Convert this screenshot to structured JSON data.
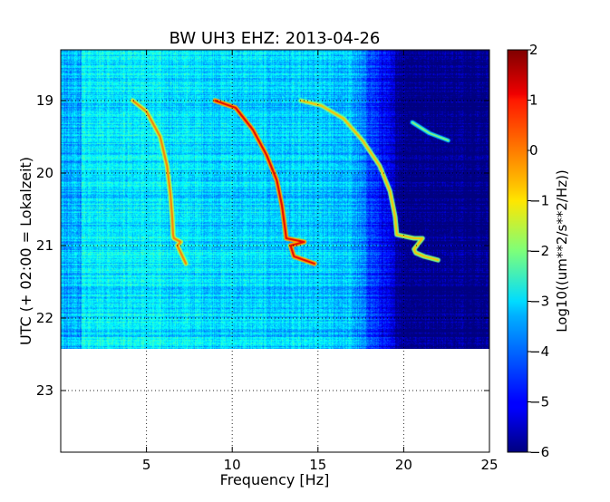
{
  "chart_data": {
    "type": "heatmap",
    "title": "BW UH3 EHZ: 2013-04-26",
    "xlabel": "Frequency [Hz]",
    "ylabel": "UTC (+ 02:00 = Lokalzeit)",
    "xlim": [
      0,
      25
    ],
    "ylim_hours": [
      18.3,
      23.85
    ],
    "data_extent_hours": [
      18.3,
      22.35
    ],
    "x_ticks": [
      5,
      10,
      15,
      20,
      25
    ],
    "x_tick_labels": [
      "5",
      "10",
      "15",
      "20",
      "25"
    ],
    "y_ticks": [
      19,
      20,
      21,
      22,
      23
    ],
    "y_tick_labels": [
      "19",
      "20",
      "21",
      "22",
      "23"
    ],
    "grid": true,
    "colormap": "jet",
    "colorbar": {
      "label": "Log10((um**2/s**2/Hz))",
      "range": [
        -6,
        2
      ],
      "ticks": [
        2,
        1,
        0,
        -1,
        -2,
        -3,
        -4,
        -5,
        -6
      ],
      "tick_labels": [
        "2",
        "1",
        "0",
        "−1",
        "−2",
        "−3",
        "−4",
        "−5",
        "−6"
      ]
    },
    "background": {
      "description": "broadband noise",
      "low_freq_level": -3.0,
      "high_freq_level": -6.0,
      "rolloff_hz": 19.5
    },
    "harmonic_tracks": [
      {
        "points": [
          [
            4.2,
            19.0
          ],
          [
            5.0,
            19.15
          ],
          [
            5.8,
            19.5
          ],
          [
            6.2,
            19.9
          ],
          [
            6.4,
            20.3
          ],
          [
            6.5,
            20.6
          ],
          [
            6.55,
            20.85
          ],
          [
            6.6,
            20.9
          ],
          [
            7.0,
            20.95
          ],
          [
            6.8,
            21.0
          ],
          [
            7.0,
            21.1
          ],
          [
            7.3,
            21.25
          ]
        ],
        "level": 0.0
      },
      {
        "points": [
          [
            9.0,
            19.0
          ],
          [
            10.2,
            19.1
          ],
          [
            11.2,
            19.4
          ],
          [
            12.0,
            19.75
          ],
          [
            12.6,
            20.1
          ],
          [
            12.9,
            20.45
          ],
          [
            13.1,
            20.8
          ],
          [
            13.15,
            20.9
          ],
          [
            14.2,
            20.95
          ],
          [
            13.4,
            21.0
          ],
          [
            13.6,
            21.15
          ],
          [
            14.2,
            21.2
          ],
          [
            14.8,
            21.25
          ]
        ],
        "level": 1.2
      },
      {
        "points": [
          [
            14.0,
            19.0
          ],
          [
            15.2,
            19.07
          ],
          [
            16.5,
            19.25
          ],
          [
            17.6,
            19.55
          ],
          [
            18.6,
            19.9
          ],
          [
            19.2,
            20.25
          ],
          [
            19.5,
            20.6
          ],
          [
            19.6,
            20.85
          ],
          [
            20.6,
            20.9
          ],
          [
            21.1,
            20.9
          ],
          [
            20.6,
            21.05
          ],
          [
            20.7,
            21.1
          ],
          [
            21.2,
            21.15
          ],
          [
            22.0,
            21.2
          ]
        ],
        "level": -0.5
      }
    ],
    "faint_tail": [
      [
        20.5,
        19.3
      ],
      [
        21.5,
        19.45
      ],
      [
        22.6,
        19.55
      ]
    ],
    "tail_level": -1.8
  }
}
